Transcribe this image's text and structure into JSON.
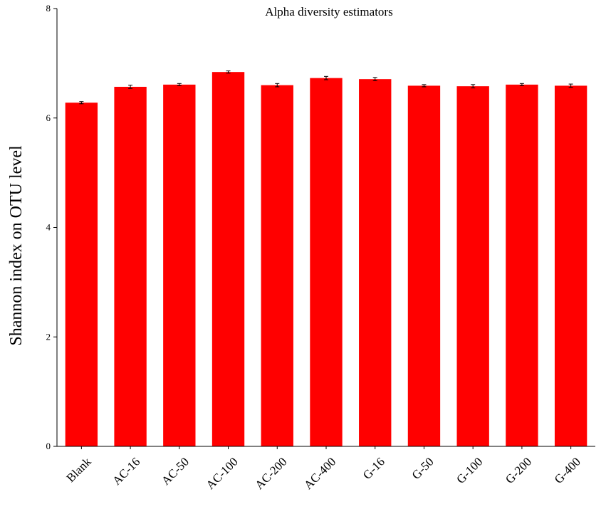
{
  "chart_data": {
    "type": "bar",
    "title": "Alpha diversity estimators",
    "xlabel": "",
    "ylabel": "Shannon index on OTU level",
    "ylim": [
      0,
      8
    ],
    "yticks": [
      0,
      2,
      4,
      6,
      8
    ],
    "categories": [
      "Blank",
      "AC-16",
      "AC-50",
      "AC-100",
      "AC-200",
      "AC-400",
      "G-16",
      "G-50",
      "G-100",
      "G-200",
      "G-400"
    ],
    "values": [
      6.28,
      6.57,
      6.61,
      6.84,
      6.6,
      6.73,
      6.71,
      6.59,
      6.58,
      6.61,
      6.59
    ],
    "errors": [
      0.02,
      0.03,
      0.02,
      0.02,
      0.03,
      0.03,
      0.03,
      0.02,
      0.03,
      0.02,
      0.03
    ],
    "bar_color": "#ff0000",
    "grid": false,
    "legend": "none"
  }
}
